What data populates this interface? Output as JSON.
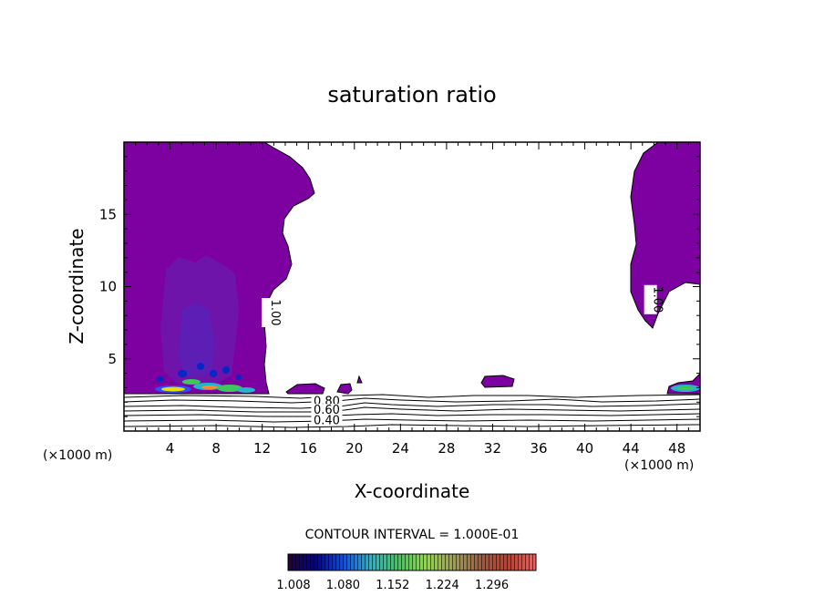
{
  "chart_data": {
    "type": "contour",
    "title": "saturation ratio",
    "xlabel": "X-coordinate",
    "ylabel": "Z-coordinate",
    "x_unit_left": "(×1000 m)",
    "x_unit_right": "(×1000 m)",
    "xlim": [
      0,
      50
    ],
    "ylim": [
      0,
      20
    ],
    "x_ticks": [
      4,
      8,
      12,
      16,
      20,
      24,
      28,
      32,
      36,
      40,
      44,
      48
    ],
    "y_ticks": [
      5,
      10,
      15
    ],
    "contour_interval_label": "CONTOUR INTERVAL = 1.000E-01",
    "contour_labels": [
      {
        "text": "1.00",
        "x": 12.5,
        "y": 8.2
      },
      {
        "text": "1.00",
        "x": 45.7,
        "y": 9.1
      },
      {
        "text": "0.80",
        "x": 17.6,
        "y": 2.1
      },
      {
        "text": "0.60",
        "x": 17.6,
        "y": 1.5
      },
      {
        "text": "0.40",
        "x": 17.6,
        "y": 0.8
      }
    ],
    "contour_levels": [
      0.3,
      0.4,
      0.5,
      0.6,
      0.7,
      0.8,
      0.9,
      1.0
    ],
    "saturated_region_color": "#7d00a0",
    "colorbar": {
      "ticks": [
        "1.008",
        "1.080",
        "1.152",
        "1.224",
        "1.296"
      ],
      "colors": [
        "#28003c",
        "#000096",
        "#0050ff",
        "#28b4c8",
        "#3cc85a",
        "#8cdc3c",
        "#a0a050",
        "#a05a3c",
        "#c83c28",
        "#ff5a5a"
      ]
    }
  }
}
